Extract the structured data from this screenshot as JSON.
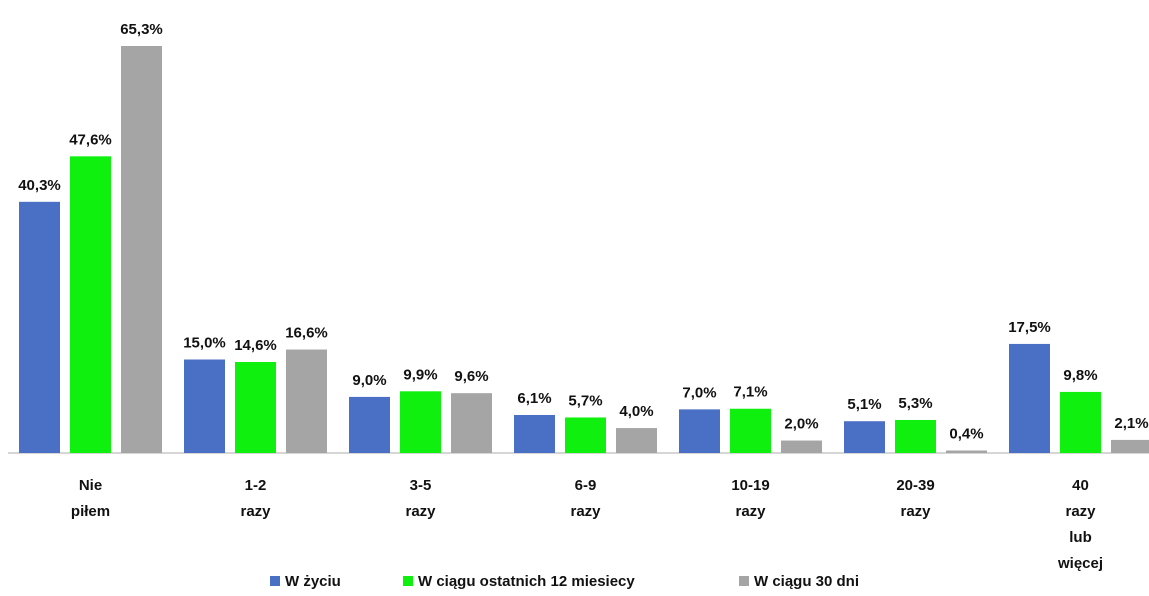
{
  "chart_data": {
    "type": "bar",
    "categories": [
      "Nie piłem",
      "1-2 razy",
      "3-5 razy",
      "6-9 razy",
      "10-19 razy",
      "20-39 razy",
      "40 razy lub więcej"
    ],
    "series": [
      {
        "name": "W życiu",
        "color": "#4a70c6",
        "values": [
          40.3,
          15.0,
          9.0,
          6.1,
          7.0,
          5.1,
          17.5
        ],
        "value_labels": [
          "40,3%",
          "15,0%",
          "9,0%",
          "6,1%",
          "7,0%",
          "5,1%",
          "17,5%"
        ]
      },
      {
        "name": "W ciągu ostatnich 12 miesiecy",
        "color": "#0ff00f",
        "values": [
          47.6,
          14.6,
          9.9,
          5.7,
          7.1,
          5.3,
          9.8
        ],
        "value_labels": [
          "47,6%",
          "14,6%",
          "9,9%",
          "5,7%",
          "7,1%",
          "5,3%",
          "9,8%"
        ]
      },
      {
        "name": "W ciągu 30 dni",
        "color": "#a5a5a5",
        "values": [
          65.3,
          16.6,
          9.6,
          4.0,
          2.0,
          0.4,
          2.1
        ],
        "value_labels": [
          "65,3%",
          "16,6%",
          "9,6%",
          "4,0%",
          "2,0%",
          "0,4%",
          "2,1%"
        ]
      }
    ],
    "legend": "bottom"
  }
}
